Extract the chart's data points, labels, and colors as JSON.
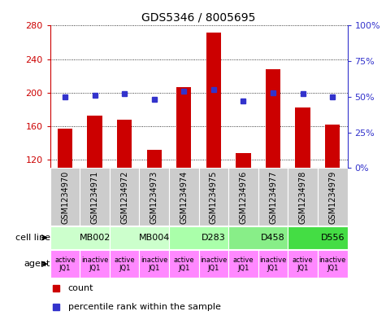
{
  "title": "GDS5346 / 8005695",
  "samples": [
    "GSM1234970",
    "GSM1234971",
    "GSM1234972",
    "GSM1234973",
    "GSM1234974",
    "GSM1234975",
    "GSM1234976",
    "GSM1234977",
    "GSM1234978",
    "GSM1234979"
  ],
  "counts": [
    157,
    173,
    168,
    132,
    207,
    272,
    128,
    228,
    182,
    162
  ],
  "percentile_ranks": [
    50,
    51,
    52,
    48,
    54,
    55,
    47,
    53,
    52,
    50
  ],
  "ylim_left": [
    110,
    280
  ],
  "ylim_right": [
    0,
    100
  ],
  "yticks_left": [
    120,
    160,
    200,
    240,
    280
  ],
  "yticks_right": [
    0,
    25,
    50,
    75,
    100
  ],
  "cell_lines": [
    {
      "label": "MB002",
      "spans": [
        0,
        2
      ],
      "color": "#ccffcc"
    },
    {
      "label": "MB004",
      "spans": [
        2,
        4
      ],
      "color": "#ccffcc"
    },
    {
      "label": "D283",
      "spans": [
        4,
        6
      ],
      "color": "#aaffaa"
    },
    {
      "label": "D458",
      "spans": [
        6,
        8
      ],
      "color": "#88ee88"
    },
    {
      "label": "D556",
      "spans": [
        8,
        10
      ],
      "color": "#44dd44"
    }
  ],
  "agent_labels": [
    "active\nJQ1",
    "inactive\nJQ1",
    "active\nJQ1",
    "inactive\nJQ1",
    "active\nJQ1",
    "inactive\nJQ1",
    "active\nJQ1",
    "inactive\nJQ1",
    "active\nJQ1",
    "inactive\nJQ1"
  ],
  "agent_color": "#ff88ff",
  "bar_color": "#cc0000",
  "dot_color": "#3333cc",
  "bar_width": 0.5,
  "bg_color": "#ffffff",
  "left_axis_color": "#cc0000",
  "right_axis_color": "#3333cc",
  "tick_label_fontsize": 8,
  "sample_fontsize": 7,
  "cell_fontsize": 8,
  "agent_fontsize": 6
}
